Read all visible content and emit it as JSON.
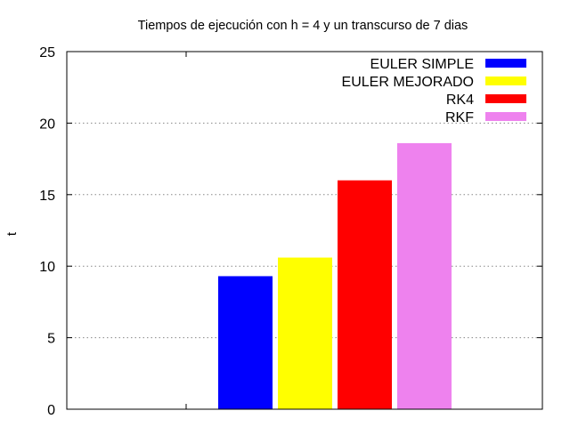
{
  "chart_data": {
    "type": "bar",
    "title": "Tiempos de ejecución con h = 4 y un transcurso de 7 dias",
    "xlabel": "",
    "ylabel": "t",
    "ylim": [
      0,
      25
    ],
    "yticks": [
      0,
      5,
      10,
      15,
      20,
      25
    ],
    "grid": true,
    "legend_position": "top-right",
    "series": [
      {
        "name": "EULER SIMPLE",
        "value": 9.3,
        "color": "#0000ff"
      },
      {
        "name": "EULER MEJORADO",
        "value": 10.6,
        "color": "#ffff00"
      },
      {
        "name": "RK4",
        "value": 16.0,
        "color": "#ff0000"
      },
      {
        "name": "RKF",
        "value": 18.6,
        "color": "#ee82ee"
      }
    ]
  }
}
